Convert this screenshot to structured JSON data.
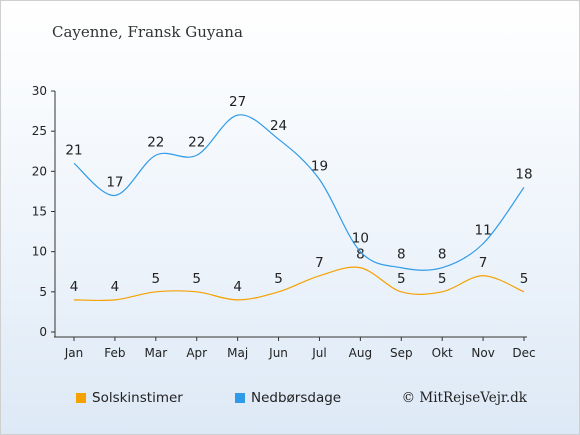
{
  "chart_data": {
    "type": "line",
    "title": "Cayenne, Fransk Guyana",
    "categories": [
      "Jan",
      "Feb",
      "Mar",
      "Apr",
      "Maj",
      "Jun",
      "Jul",
      "Aug",
      "Sep",
      "Okt",
      "Nov",
      "Dec"
    ],
    "ylim": [
      0,
      30
    ],
    "yticks": [
      0,
      5,
      10,
      15,
      20,
      25,
      30
    ],
    "grid": false,
    "legend_position": "bottom-left",
    "series": [
      {
        "name": "Solskinstimer",
        "color": "#f5a100",
        "values": [
          4,
          4,
          5,
          5,
          4,
          5,
          7,
          8,
          5,
          5,
          7,
          5
        ]
      },
      {
        "name": "Nedbørsdage",
        "color": "#2f9be8",
        "values": [
          21,
          17,
          22,
          22,
          27,
          24,
          19,
          10,
          8,
          8,
          11,
          18
        ]
      }
    ]
  },
  "credit": "© MitRejseVejr.dk"
}
